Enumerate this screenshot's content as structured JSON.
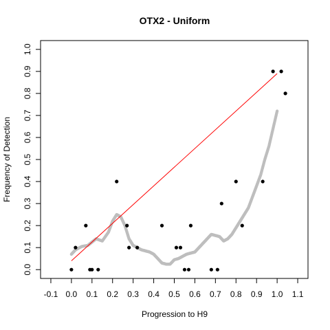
{
  "chart_data": {
    "type": "scatter",
    "title": "OTX2 - Uniform",
    "xlabel": "Progression to H9",
    "ylabel": "Frequency of Detection",
    "xlim": [
      -0.15,
      1.15
    ],
    "ylim": [
      -0.04,
      1.04
    ],
    "x_ticks": [
      -0.1,
      0.0,
      0.1,
      0.2,
      0.3,
      0.4,
      0.5,
      0.6,
      0.7,
      0.8,
      0.9,
      1.0,
      1.1
    ],
    "x_tick_labels": [
      "-0.1",
      "0.0",
      "0.1",
      "0.2",
      "0.3",
      "0.4",
      "0.5",
      "0.6",
      "0.7",
      "0.8",
      "0.9",
      "1.0",
      "1.1"
    ],
    "y_ticks": [
      0.0,
      0.1,
      0.2,
      0.3,
      0.4,
      0.5,
      0.6,
      0.7,
      0.8,
      0.9,
      1.0
    ],
    "y_tick_labels": [
      "0.0",
      "0.1",
      "0.2",
      "0.3",
      "0.4",
      "0.5",
      "0.6",
      "0.7",
      "0.8",
      "0.9",
      "1.0"
    ],
    "grid": false,
    "colors": {
      "points": "#000000",
      "smooth": "#bebebe",
      "fit": "#ff0000"
    },
    "series": [
      {
        "kind": "points",
        "x": [
          0.0,
          0.02,
          0.07,
          0.09,
          0.1,
          0.13,
          0.22,
          0.27,
          0.28,
          0.32,
          0.44,
          0.51,
          0.53,
          0.55,
          0.57,
          0.58,
          0.68,
          0.71,
          0.73,
          0.8,
          0.83,
          0.93,
          0.98,
          1.02,
          1.04
        ],
        "y": [
          0.0,
          0.1,
          0.2,
          0.0,
          0.0,
          0.0,
          0.4,
          0.2,
          0.1,
          0.1,
          0.2,
          0.1,
          0.1,
          0.0,
          0.0,
          0.2,
          0.0,
          0.0,
          0.3,
          0.4,
          0.2,
          0.4,
          0.9,
          0.9,
          0.8
        ]
      },
      {
        "kind": "smooth",
        "x": [
          0.0,
          0.02,
          0.05,
          0.08,
          0.1,
          0.12,
          0.15,
          0.18,
          0.2,
          0.22,
          0.24,
          0.26,
          0.28,
          0.3,
          0.32,
          0.34,
          0.36,
          0.38,
          0.4,
          0.42,
          0.44,
          0.46,
          0.48,
          0.5,
          0.52,
          0.54,
          0.56,
          0.58,
          0.6,
          0.62,
          0.64,
          0.66,
          0.68,
          0.7,
          0.72,
          0.74,
          0.76,
          0.78,
          0.8,
          0.82,
          0.84,
          0.86,
          0.88,
          0.9,
          0.92,
          0.94,
          0.96,
          0.98,
          1.0
        ],
        "y": [
          0.07,
          0.09,
          0.105,
          0.11,
          0.125,
          0.14,
          0.13,
          0.17,
          0.22,
          0.25,
          0.24,
          0.2,
          0.14,
          0.11,
          0.1,
          0.09,
          0.085,
          0.08,
          0.07,
          0.05,
          0.03,
          0.025,
          0.025,
          0.045,
          0.05,
          0.06,
          0.07,
          0.075,
          0.08,
          0.1,
          0.12,
          0.14,
          0.16,
          0.155,
          0.15,
          0.13,
          0.14,
          0.16,
          0.19,
          0.22,
          0.25,
          0.28,
          0.33,
          0.38,
          0.43,
          0.5,
          0.56,
          0.64,
          0.72
        ]
      },
      {
        "kind": "fit_line",
        "x": [
          0.0,
          1.0
        ],
        "y": [
          0.04,
          0.89
        ]
      }
    ]
  }
}
